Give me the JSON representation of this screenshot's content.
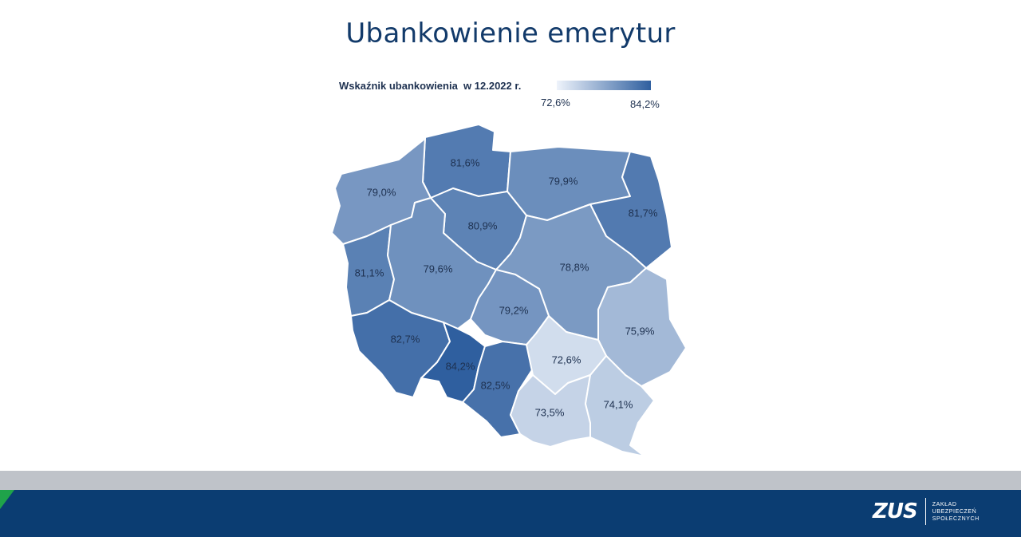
{
  "title": "Ubankowienie emerytur",
  "legend": {
    "label": "Wskaźnik ubankowienia  w 12.2022 r.",
    "min_label": "72,6%",
    "max_label": "84,2%",
    "min_value": 72.6,
    "max_value": 84.2,
    "color_low": "#eef3fb",
    "color_high": "#2f5f9f"
  },
  "regions": [
    {
      "id": "pomorskie",
      "label": "81,6%",
      "value": 81.6
    },
    {
      "id": "warminsko-mazurskie",
      "label": "79,9%",
      "value": 79.9
    },
    {
      "id": "podlaskie",
      "label": "81,7%",
      "value": 81.7
    },
    {
      "id": "zachodniopomorskie",
      "label": "79,0%",
      "value": 79.0
    },
    {
      "id": "kujawsko-pomorskie",
      "label": "80,9%",
      "value": 80.9
    },
    {
      "id": "lubuskie",
      "label": "81,1%",
      "value": 81.1
    },
    {
      "id": "wielkopolskie",
      "label": "79,6%",
      "value": 79.6
    },
    {
      "id": "mazowieckie",
      "label": "78,8%",
      "value": 78.8
    },
    {
      "id": "lodzkie",
      "label": "79,2%",
      "value": 79.2
    },
    {
      "id": "lubelskie",
      "label": "75,9%",
      "value": 75.9
    },
    {
      "id": "dolnoslaskie",
      "label": "82,7%",
      "value": 82.7
    },
    {
      "id": "opolskie",
      "label": "84,2%",
      "value": 84.2
    },
    {
      "id": "slaskie",
      "label": "82,5%",
      "value": 82.5
    },
    {
      "id": "swietokrzyskie",
      "label": "72,6%",
      "value": 72.6
    },
    {
      "id": "malopolskie",
      "label": "73,5%",
      "value": 73.5
    },
    {
      "id": "podkarpackie",
      "label": "74,1%",
      "value": 74.1
    }
  ],
  "footer": {
    "logo_mark": "ZUS",
    "logo_text_1": "ZAKŁAD",
    "logo_text_2": "UBEZPIECZEŃ",
    "logo_text_3": "SPOŁECZNYCH",
    "accent_color": "#1fa34a",
    "navy_color": "#0b3d72",
    "gray_color": "#bfc3c9"
  }
}
